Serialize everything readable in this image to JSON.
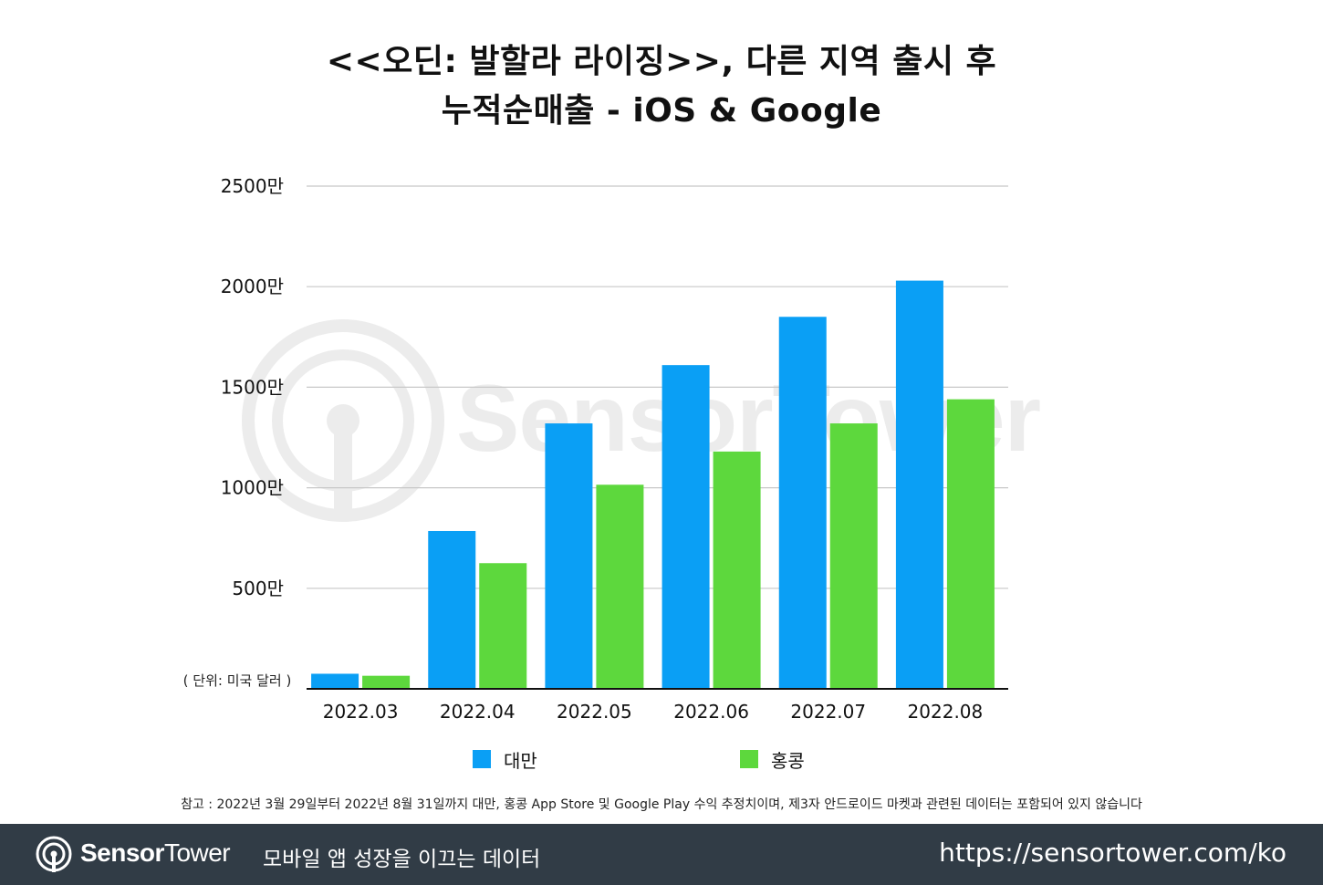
{
  "chart_data": {
    "type": "bar",
    "title_line1": "<<오딘: 발할라 라이징>>, 다른 지역 출시 후",
    "title_line2": "누적순매출 - iOS & Google",
    "unit_note": "( 단위: 미국 달러 )",
    "categories": [
      "2022.03",
      "2022.04",
      "2022.05",
      "2022.06",
      "2022.07",
      "2022.08"
    ],
    "series": [
      {
        "name": "대만",
        "color": "#0a9ff5",
        "values": [
          750000,
          7850000,
          13200000,
          16100000,
          18500000,
          20300000
        ]
      },
      {
        "name": "홍콩",
        "color": "#5dd83d",
        "values": [
          650000,
          6250000,
          10150000,
          11800000,
          13200000,
          14400000
        ]
      }
    ],
    "yticks": [
      {
        "value": 5000000,
        "label": "500만"
      },
      {
        "value": 10000000,
        "label": "1000만"
      },
      {
        "value": 15000000,
        "label": "1500만"
      },
      {
        "value": 20000000,
        "label": "2000만"
      },
      {
        "value": 25000000,
        "label": "2500만"
      }
    ],
    "ylim": [
      0,
      25000000
    ],
    "grid": true,
    "legend_position": "bottom"
  },
  "footnote": "참고 : 2022년 3월 29일부터 2022년 8월 31일까지 대만, 홍콩 App Store 및 Google Play 수익 추정치이며, 제3자 안드로이드 마켓과 관련된 데이터는 포함되어 있지 않습니다",
  "watermark": "SensorTower",
  "footer": {
    "brand_bold": "Sensor",
    "brand_regular": "Tower",
    "slogan": "모바일 앱 성장을 이끄는 데이터",
    "url": "https://sensortower.com/ko"
  },
  "icons": {
    "logo": "sensor-tower-logo-icon"
  }
}
